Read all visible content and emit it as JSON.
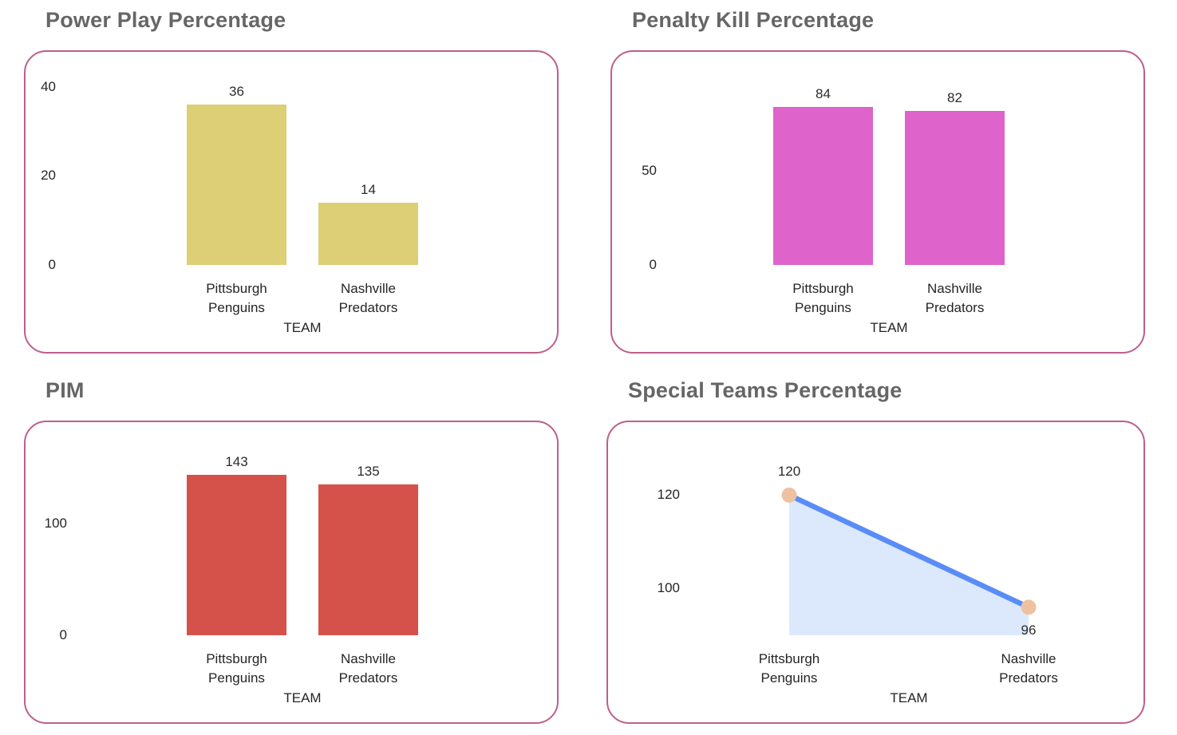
{
  "page": {
    "background": "#ffffff",
    "card_border_color": "#bd5f8c",
    "title_color": "#666666",
    "text_color": "#252525"
  },
  "chart_data": [
    {
      "type": "bar",
      "title": "Power Play Percentage",
      "xlabel": "TEAM",
      "ylabel": "",
      "categories": [
        "Pittsburgh Penguins",
        "Nashville Predators"
      ],
      "values": [
        36,
        14
      ],
      "yticks": [
        0,
        20,
        40
      ],
      "ylim": [
        0,
        43
      ],
      "grid": false,
      "legend": "none",
      "bar_color": "#dccf75"
    },
    {
      "type": "bar",
      "title": "Penalty Kill Percentage",
      "xlabel": "TEAM",
      "ylabel": "",
      "categories": [
        "Pittsburgh Penguins",
        "Nashville Predators"
      ],
      "values": [
        84,
        82
      ],
      "yticks": [
        0,
        50
      ],
      "ylim": [
        0,
        102
      ],
      "grid": false,
      "legend": "none",
      "bar_color": "#de63cb"
    },
    {
      "type": "bar",
      "title": "PIM",
      "xlabel": "TEAM",
      "ylabel": "",
      "categories": [
        "Pittsburgh Penguins",
        "Nashville Predators"
      ],
      "values": [
        143,
        135
      ],
      "yticks": [
        0,
        100
      ],
      "ylim": [
        0,
        171
      ],
      "grid": false,
      "legend": "none",
      "bar_color": "#d5524a"
    },
    {
      "type": "area",
      "title": "Special Teams Percentage",
      "xlabel": "TEAM",
      "ylabel": "",
      "categories": [
        "Pittsburgh Penguins",
        "Nashville Predators"
      ],
      "values": [
        120,
        96
      ],
      "label_pos": [
        "above",
        "below"
      ],
      "yticks": [
        100,
        120
      ],
      "ylim": [
        90,
        131
      ],
      "grid": false,
      "legend": "none",
      "line_color": "#5a8cf8",
      "area_color": "#dce9fc",
      "marker_color": "#eec2a0"
    }
  ]
}
